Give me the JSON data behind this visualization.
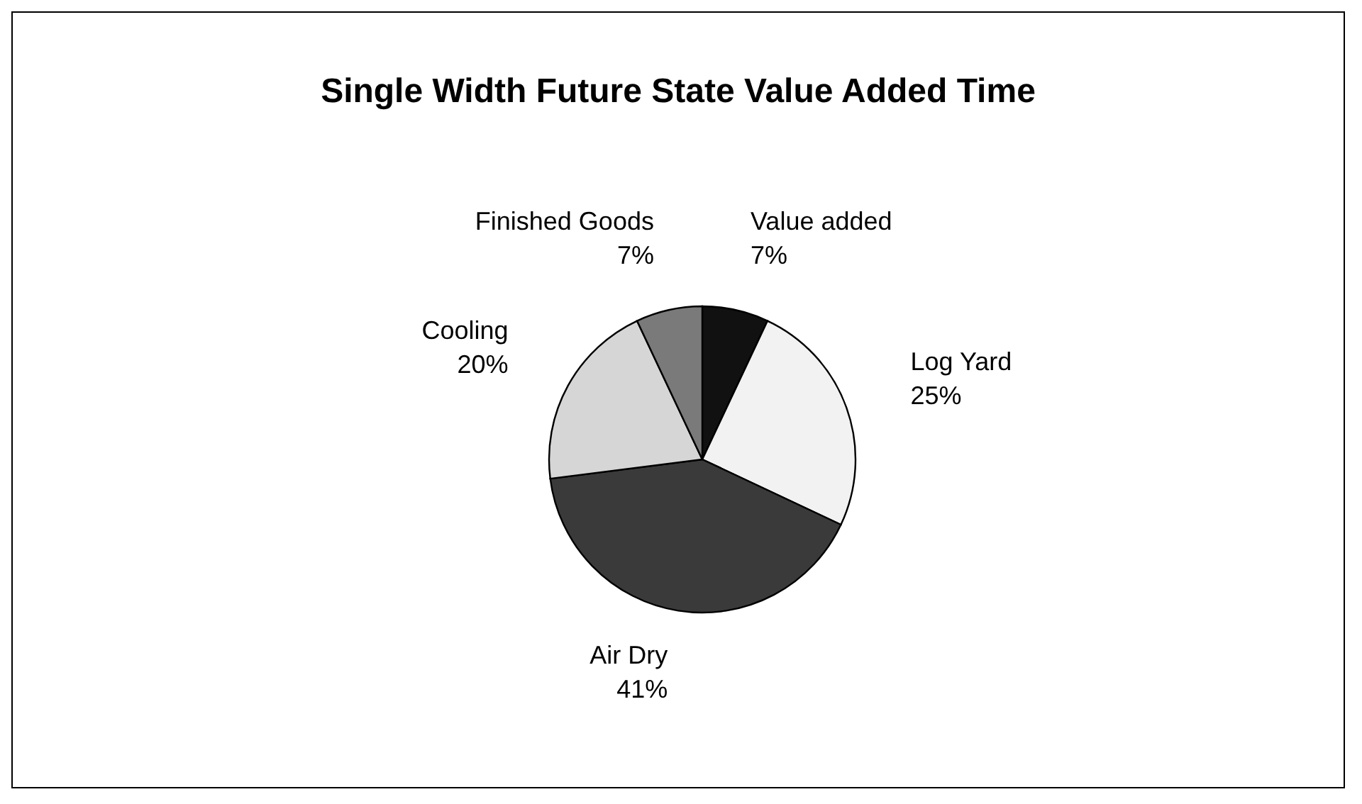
{
  "chart_data": {
    "type": "pie",
    "title": "Single Width Future State Value Added Time",
    "categories": [
      "Value added",
      "Log Yard",
      "Air Dry",
      "Cooling",
      "Finished Goods"
    ],
    "values": [
      7,
      25,
      41,
      20,
      7
    ],
    "value_labels": [
      "7%",
      "25%",
      "41%",
      "20%",
      "7%"
    ],
    "colors": [
      "#111111",
      "#f2f2f2",
      "#3a3a3a",
      "#d6d6d6",
      "#7a7a7a"
    ],
    "legend": false
  }
}
